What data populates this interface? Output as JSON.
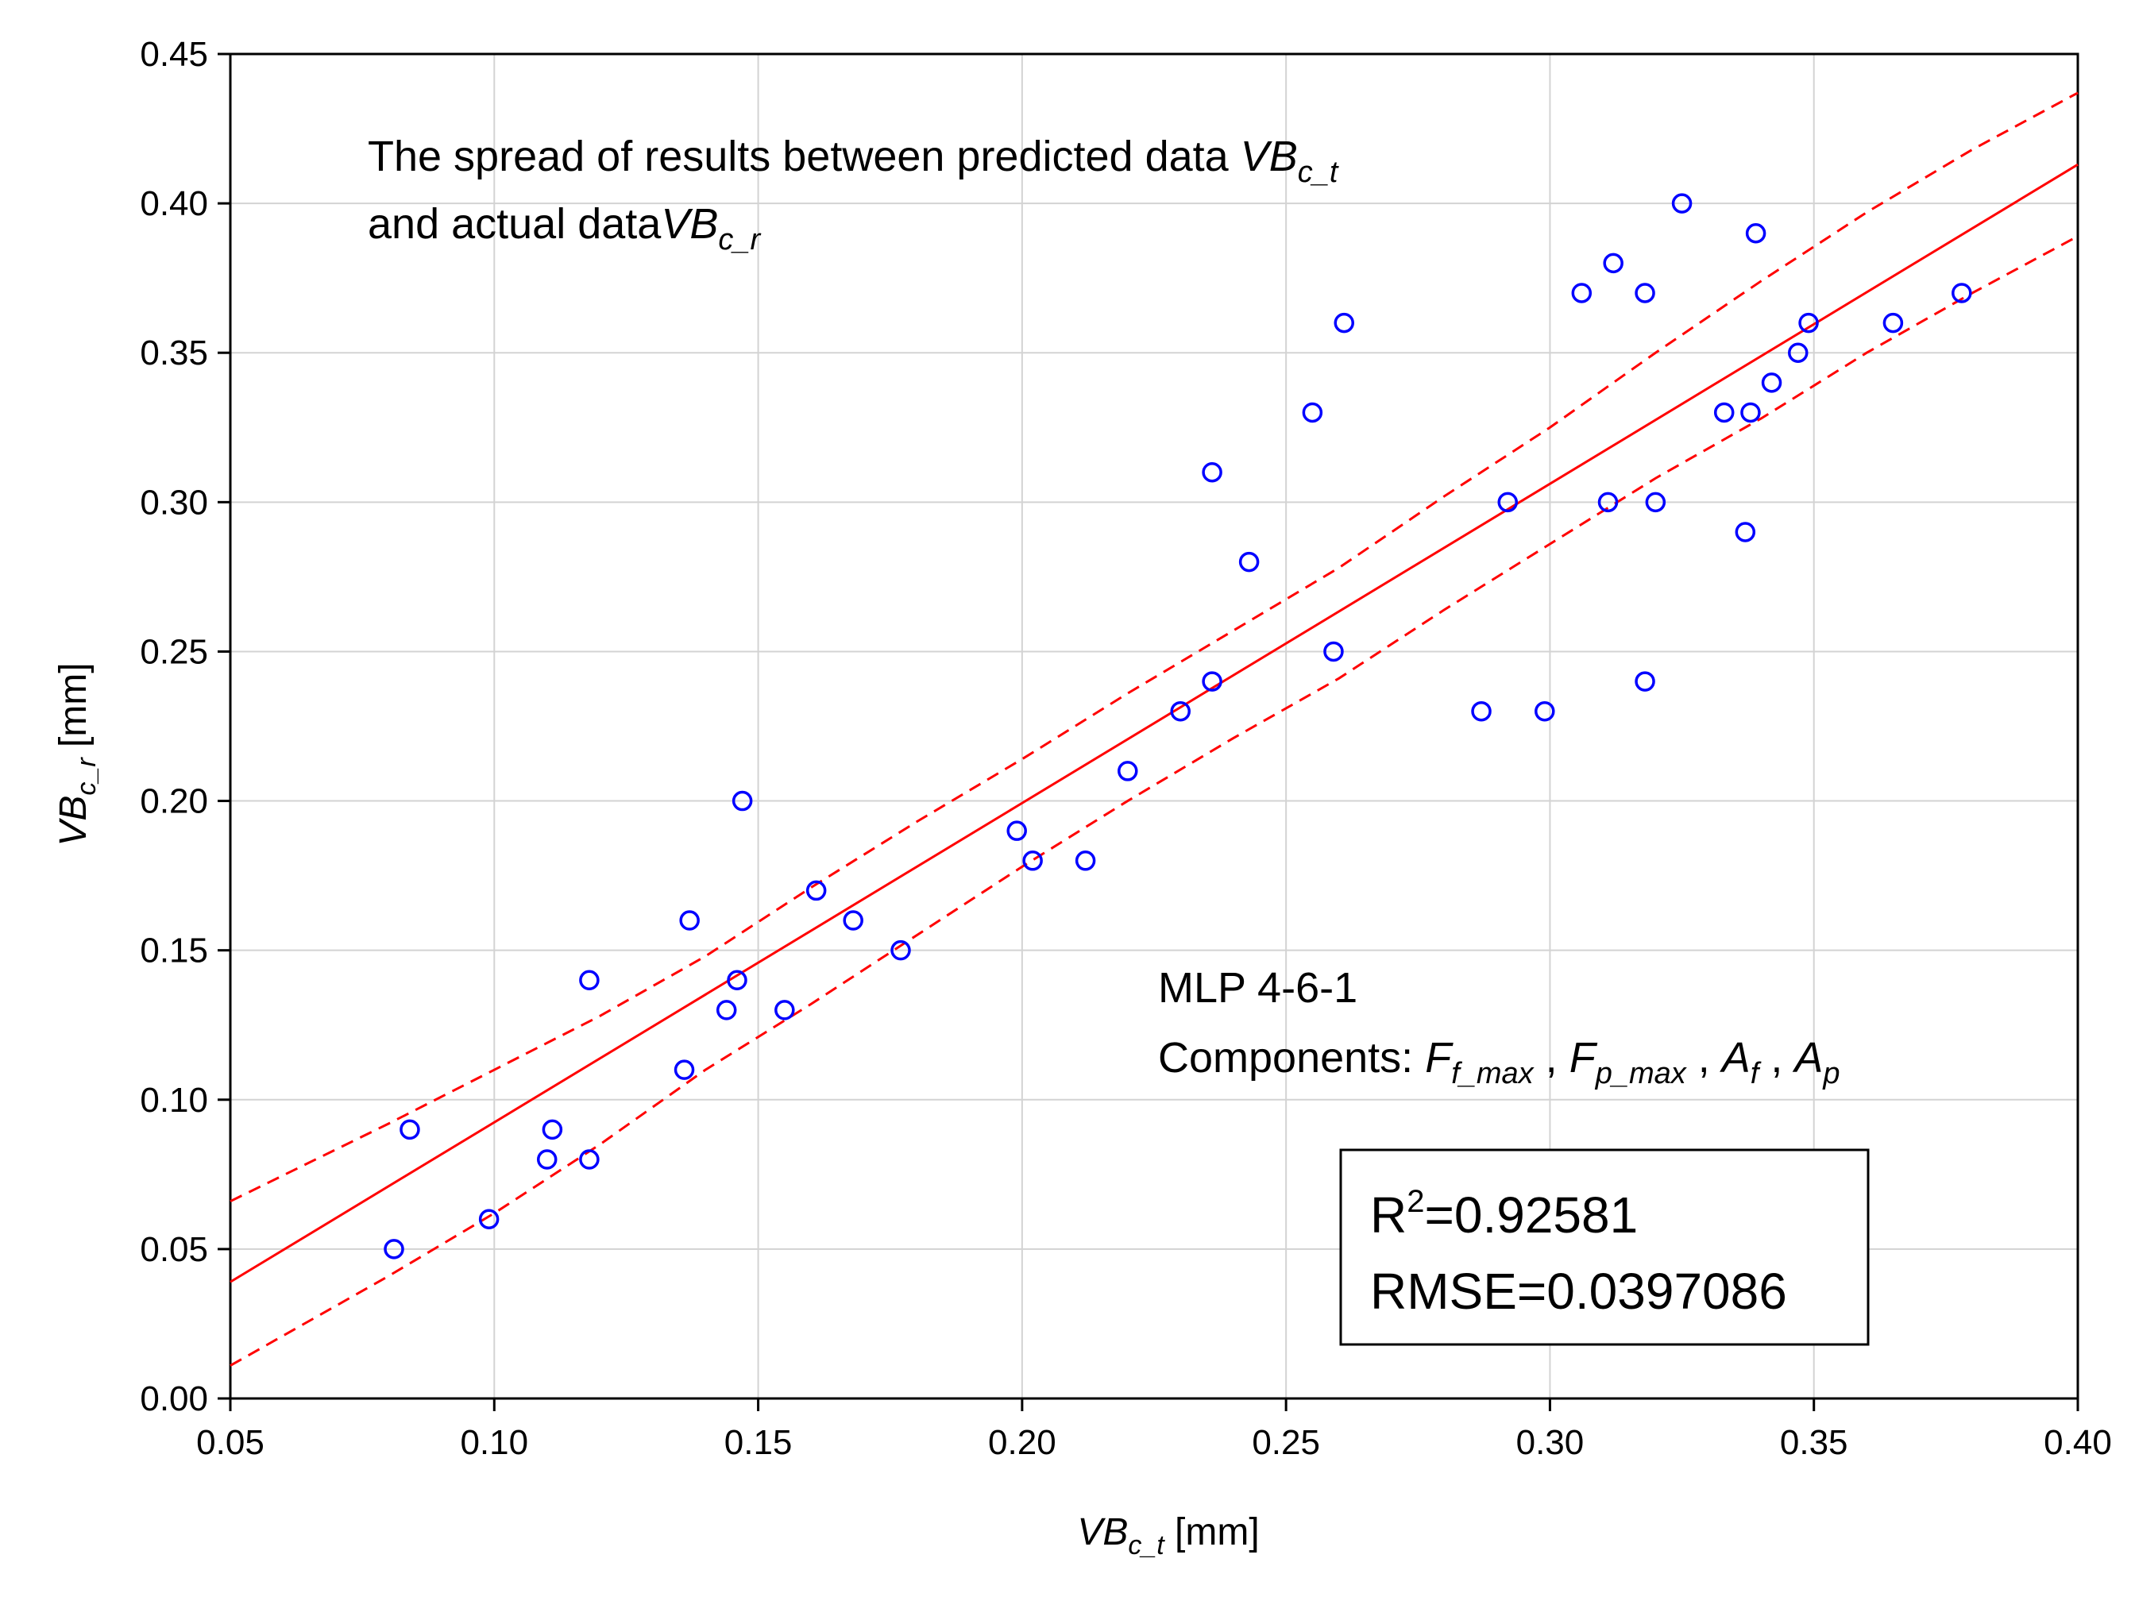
{
  "chart_data": {
    "type": "scatter",
    "x": [
      0.081,
      0.084,
      0.099,
      0.11,
      0.111,
      0.118,
      0.118,
      0.136,
      0.137,
      0.144,
      0.146,
      0.147,
      0.155,
      0.161,
      0.168,
      0.177,
      0.199,
      0.202,
      0.212,
      0.22,
      0.23,
      0.236,
      0.236,
      0.243,
      0.255,
      0.259,
      0.261,
      0.287,
      0.292,
      0.299,
      0.306,
      0.311,
      0.312,
      0.318,
      0.318,
      0.32,
      0.325,
      0.333,
      0.337,
      0.338,
      0.339,
      0.342,
      0.347,
      0.349,
      0.365,
      0.378
    ],
    "y": [
      0.05,
      0.09,
      0.06,
      0.08,
      0.09,
      0.14,
      0.08,
      0.11,
      0.16,
      0.13,
      0.14,
      0.2,
      0.13,
      0.17,
      0.16,
      0.15,
      0.19,
      0.18,
      0.18,
      0.21,
      0.23,
      0.31,
      0.24,
      0.28,
      0.33,
      0.25,
      0.36,
      0.23,
      0.3,
      0.23,
      0.37,
      0.3,
      0.38,
      0.37,
      0.24,
      0.3,
      0.4,
      0.33,
      0.29,
      0.33,
      0.39,
      0.34,
      0.35,
      0.36,
      0.36,
      0.37
    ],
    "fit_line": {
      "x": [
        0.05,
        0.4
      ],
      "y": [
        0.039,
        0.413
      ]
    },
    "confidence_upper": {
      "x": [
        0.05,
        0.08,
        0.1,
        0.12,
        0.14,
        0.16,
        0.18,
        0.2,
        0.22,
        0.24,
        0.26,
        0.28,
        0.3,
        0.32,
        0.34,
        0.36,
        0.38,
        0.4
      ],
      "y": [
        0.066,
        0.092,
        0.11,
        0.128,
        0.148,
        0.171,
        0.193,
        0.214,
        0.236,
        0.257,
        0.278,
        0.302,
        0.325,
        0.35,
        0.374,
        0.397,
        0.418,
        0.437
      ]
    },
    "confidence_lower": {
      "x": [
        0.05,
        0.08,
        0.1,
        0.12,
        0.14,
        0.16,
        0.18,
        0.2,
        0.22,
        0.24,
        0.26,
        0.28,
        0.3,
        0.32,
        0.34,
        0.36,
        0.38,
        0.4
      ],
      "y": [
        0.011,
        0.041,
        0.062,
        0.085,
        0.11,
        0.132,
        0.155,
        0.178,
        0.2,
        0.221,
        0.241,
        0.264,
        0.286,
        0.308,
        0.328,
        0.35,
        0.37,
        0.389
      ]
    },
    "xlim": [
      0.05,
      0.4
    ],
    "ylim": [
      0.0,
      0.45
    ],
    "x_ticks": [
      "0.05",
      "0.10",
      "0.15",
      "0.20",
      "0.25",
      "0.30",
      "0.35",
      "0.40"
    ],
    "y_ticks": [
      "0.00",
      "0.05",
      "0.10",
      "0.15",
      "0.20",
      "0.25",
      "0.30",
      "0.35",
      "0.40",
      "0.45"
    ],
    "xlabel": {
      "main": "VB",
      "sub": "c_t",
      "unit": " [mm]"
    },
    "ylabel": {
      "main": "VB",
      "sub": "c_r",
      "unit": " [mm]"
    },
    "grid": true,
    "annotation": {
      "line1_text": "The spread of results between predicted data ",
      "line1_var": "VB",
      "line1_sub": "c_t",
      "line2_text": "and actual data",
      "line2_var": "VB",
      "line2_sub": "c_r"
    },
    "model": {
      "name": "MLP 4-6-1",
      "components_label": "Components: ",
      "components": [
        {
          "var": "F",
          "sub": "f_max"
        },
        {
          "var": "F",
          "sub": "p_max"
        },
        {
          "var": "A",
          "sub": "f"
        },
        {
          "var": "A",
          "sub": "p"
        }
      ],
      "separator": " , "
    },
    "stats": {
      "r2_label": "R",
      "r2_sup": "2",
      "r2_value": "=0.92581",
      "rmse": "RMSE=0.0397086"
    }
  },
  "colors": {
    "points": "#0000ff",
    "fit": "#ff0000",
    "grid": "#d3d3d3",
    "axis": "#000000"
  }
}
